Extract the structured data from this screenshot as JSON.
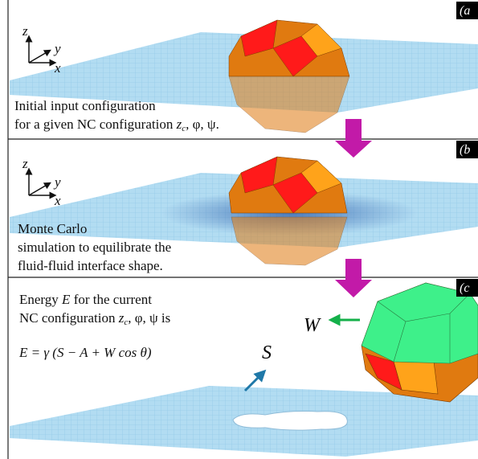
{
  "panels": [
    {
      "label": "(a",
      "axes": {
        "z": "z",
        "y": "y",
        "x": "x"
      },
      "caption": [
        [
          "Initial input configuration"
        ],
        [
          "for a given NC configuration",
          "z",
          "c",
          ", φ, ψ."
        ]
      ]
    },
    {
      "label": "(b",
      "axes": {
        "z": "z",
        "y": "y",
        "x": "x"
      },
      "caption": [
        [
          "Monte Carlo"
        ],
        [
          "simulation to equilibrate the"
        ],
        [
          "fluid-fluid interface shape."
        ]
      ]
    },
    {
      "label": "(c",
      "caption": [
        [
          "Energy",
          "E",
          "for the current"
        ],
        [
          "NC configuration",
          "z",
          "c",
          ", φ, ψ is"
        ]
      ],
      "equation": "E = γ (S − A + W cos θ)",
      "labels": {
        "w": "W",
        "s": "S"
      }
    }
  ]
}
